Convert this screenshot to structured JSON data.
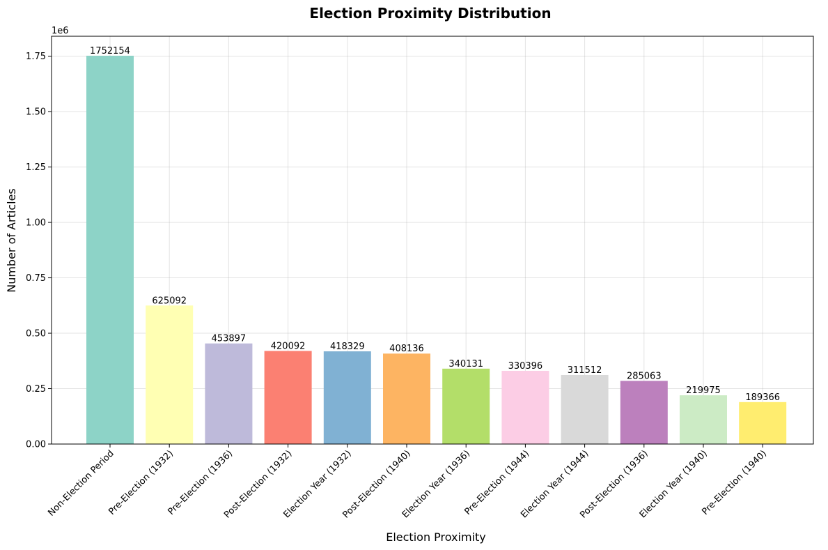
{
  "chart_data": {
    "type": "bar",
    "title": "Election Proximity Distribution",
    "xlabel": "Election Proximity",
    "ylabel": "Number of Articles",
    "y_offset_label": "1e6",
    "categories": [
      "Non-Election Period",
      "Pre-Election (1932)",
      "Pre-Election (1936)",
      "Post-Election (1932)",
      "Election Year (1932)",
      "Post-Election (1940)",
      "Election Year (1936)",
      "Pre-Election (1944)",
      "Election Year (1944)",
      "Post-Election (1936)",
      "Election Year (1940)",
      "Pre-Election (1940)"
    ],
    "values": [
      1752154,
      625092,
      453897,
      420092,
      418329,
      408136,
      340131,
      330396,
      311512,
      285063,
      219975,
      189366
    ],
    "data_labels": [
      "1752154",
      "625092",
      "453897",
      "420092",
      "418329",
      "408136",
      "340131",
      "330396",
      "311512",
      "285063",
      "219975",
      "189366"
    ],
    "colors": [
      "#8dd3c7",
      "#ffffb3",
      "#bebada",
      "#fb8072",
      "#80b1d3",
      "#fdb462",
      "#b3de69",
      "#fccde5",
      "#d9d9d9",
      "#bc80bd",
      "#ccebc5",
      "#ffed6f"
    ],
    "yticks": [
      0,
      250000,
      500000,
      750000,
      1000000,
      1250000,
      1500000,
      1750000
    ],
    "ytick_labels": [
      "0.00",
      "0.25",
      "0.50",
      "0.75",
      "1.00",
      "1.25",
      "1.50",
      "1.75"
    ],
    "ylim": [
      0,
      1840000
    ],
    "grid": true
  }
}
